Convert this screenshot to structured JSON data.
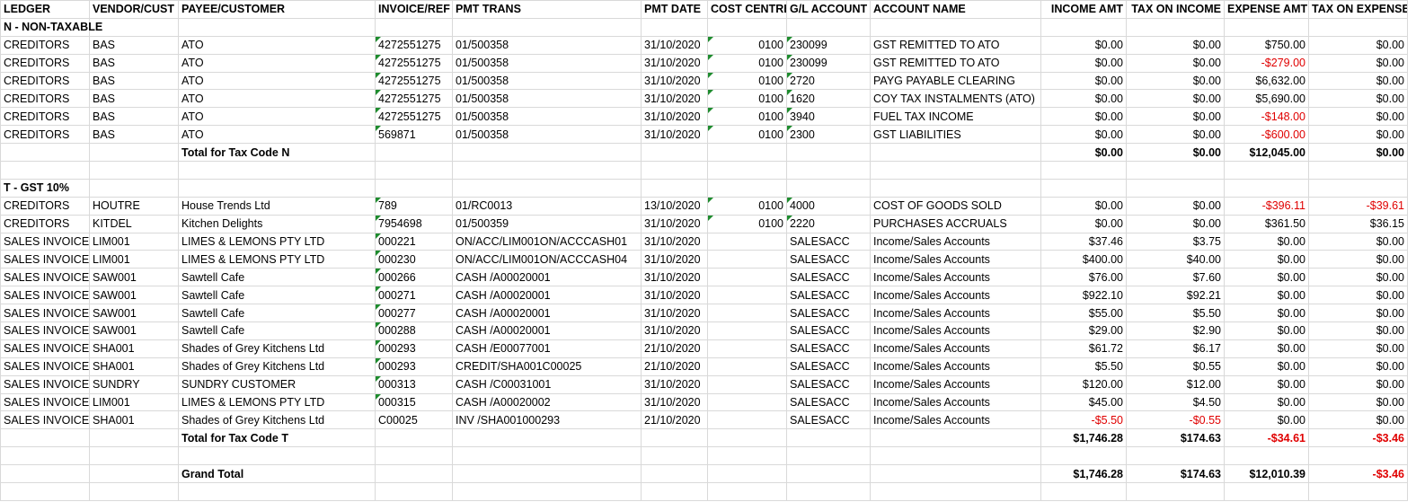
{
  "columns": [
    "LEDGER",
    "VENDOR/CUST",
    "PAYEE/CUSTOMER",
    "INVOICE/REF",
    "PMT TRANS",
    "PMT DATE",
    "COST CENTRE",
    "G/L ACCOUNT",
    "ACCOUNT NAME",
    "INCOME AMT",
    "TAX ON INCOME",
    "EXPENSE AMT",
    "TAX ON EXPENSE"
  ],
  "sections": [
    {
      "title": "N - NON-TAXABLE",
      "rows": [
        [
          "CREDITORS",
          "BAS",
          "ATO",
          "4272551275",
          "01/500358",
          "31/10/2020",
          "0100",
          "230099",
          "GST REMITTED TO ATO",
          "$0.00",
          "$0.00",
          "$750.00",
          "$0.00"
        ],
        [
          "CREDITORS",
          "BAS",
          "ATO",
          "4272551275",
          "01/500358",
          "31/10/2020",
          "0100",
          "230099",
          "GST REMITTED TO ATO",
          "$0.00",
          "$0.00",
          "-$279.00",
          "$0.00"
        ],
        [
          "CREDITORS",
          "BAS",
          "ATO",
          "4272551275",
          "01/500358",
          "31/10/2020",
          "0100",
          "2720",
          "PAYG PAYABLE CLEARING",
          "$0.00",
          "$0.00",
          "$6,632.00",
          "$0.00"
        ],
        [
          "CREDITORS",
          "BAS",
          "ATO",
          "4272551275",
          "01/500358",
          "31/10/2020",
          "0100",
          "1620",
          "COY TAX INSTALMENTS (ATO)",
          "$0.00",
          "$0.00",
          "$5,690.00",
          "$0.00"
        ],
        [
          "CREDITORS",
          "BAS",
          "ATO",
          "4272551275",
          "01/500358",
          "31/10/2020",
          "0100",
          "3940",
          "FUEL TAX INCOME",
          "$0.00",
          "$0.00",
          "-$148.00",
          "$0.00"
        ],
        [
          "CREDITORS",
          "BAS",
          "ATO",
          "569871",
          "01/500358",
          "31/10/2020",
          "0100",
          "2300",
          "GST LIABILITIES",
          "$0.00",
          "$0.00",
          "-$600.00",
          "$0.00"
        ]
      ],
      "total": {
        "label": "Total for Tax Code N",
        "amounts": [
          "$0.00",
          "$0.00",
          "$12,045.00",
          "$0.00"
        ]
      }
    },
    {
      "title": "T - GST 10%",
      "rows": [
        [
          "CREDITORS",
          "HOUTRE",
          "House Trends Ltd",
          "789",
          "01/RC0013",
          "13/10/2020",
          "0100",
          "4000",
          "COST OF GOODS SOLD",
          "$0.00",
          "$0.00",
          "-$396.11",
          "-$39.61"
        ],
        [
          "CREDITORS",
          "KITDEL",
          "Kitchen Delights",
          "7954698",
          "01/500359",
          "31/10/2020",
          "0100",
          "2220",
          "PURCHASES ACCRUALS",
          "$0.00",
          "$0.00",
          "$361.50",
          "$36.15"
        ],
        [
          "SALES INVOICE",
          "LIM001",
          "LIMES & LEMONS PTY LTD",
          "000221",
          "ON/ACC/LIM001ON/ACCCASH01",
          "31/10/2020",
          null,
          "SALESACC",
          "Income/Sales Accounts",
          "$37.46",
          "$3.75",
          "$0.00",
          "$0.00"
        ],
        [
          "SALES INVOICE",
          "LIM001",
          "LIMES & LEMONS PTY LTD",
          "000230",
          "ON/ACC/LIM001ON/ACCCASH04",
          "31/10/2020",
          null,
          "SALESACC",
          "Income/Sales Accounts",
          "$400.00",
          "$40.00",
          "$0.00",
          "$0.00"
        ],
        [
          "SALES INVOICE",
          "SAW001",
          "Sawtell Cafe",
          "000266",
          "CASH /A00020001",
          "31/10/2020",
          null,
          "SALESACC",
          "Income/Sales Accounts",
          "$76.00",
          "$7.60",
          "$0.00",
          "$0.00"
        ],
        [
          "SALES INVOICE",
          "SAW001",
          "Sawtell Cafe",
          "000271",
          "CASH /A00020001",
          "31/10/2020",
          null,
          "SALESACC",
          "Income/Sales Accounts",
          "$922.10",
          "$92.21",
          "$0.00",
          "$0.00"
        ],
        [
          "SALES INVOICE",
          "SAW001",
          "Sawtell Cafe",
          "000277",
          "CASH /A00020001",
          "31/10/2020",
          null,
          "SALESACC",
          "Income/Sales Accounts",
          "$55.00",
          "$5.50",
          "$0.00",
          "$0.00"
        ],
        [
          "SALES INVOICE",
          "SAW001",
          "Sawtell Cafe",
          "000288",
          "CASH /A00020001",
          "31/10/2020",
          null,
          "SALESACC",
          "Income/Sales Accounts",
          "$29.00",
          "$2.90",
          "$0.00",
          "$0.00"
        ],
        [
          "SALES INVOICE",
          "SHA001",
          "Shades of Grey Kitchens Ltd",
          "000293",
          "CASH /E00077001",
          "21/10/2020",
          null,
          "SALESACC",
          "Income/Sales Accounts",
          "$61.72",
          "$6.17",
          "$0.00",
          "$0.00"
        ],
        [
          "SALES INVOICE",
          "SHA001",
          "Shades of Grey Kitchens Ltd",
          "000293",
          "CREDIT/SHA001C00025",
          "21/10/2020",
          null,
          "SALESACC",
          "Income/Sales Accounts",
          "$5.50",
          "$0.55",
          "$0.00",
          "$0.00"
        ],
        [
          "SALES INVOICE",
          "SUNDRY",
          "SUNDRY CUSTOMER",
          "000313",
          "CASH /C00031001",
          "31/10/2020",
          null,
          "SALESACC",
          "Income/Sales Accounts",
          "$120.00",
          "$12.00",
          "$0.00",
          "$0.00"
        ],
        [
          "SALES INVOICE",
          "LIM001",
          "LIMES & LEMONS PTY LTD",
          "000315",
          "CASH /A00020002",
          "31/10/2020",
          null,
          "SALESACC",
          "Income/Sales Accounts",
          "$45.00",
          "$4.50",
          "$0.00",
          "$0.00"
        ],
        [
          "SALES INVOICE",
          "SHA001",
          "Shades of Grey Kitchens Ltd",
          "C00025",
          "INV /SHA001000293",
          "21/10/2020",
          null,
          "SALESACC",
          "Income/Sales Accounts",
          "-$5.50",
          "-$0.55",
          "$0.00",
          "$0.00"
        ]
      ],
      "total": {
        "label": "Total for Tax Code T",
        "amounts": [
          "$1,746.28",
          "$174.63",
          "-$34.61",
          "-$3.46"
        ]
      }
    }
  ],
  "grand_total": {
    "label": "Grand Total",
    "amounts": [
      "$1,746.28",
      "$174.63",
      "$12,010.39",
      "-$3.46"
    ]
  }
}
